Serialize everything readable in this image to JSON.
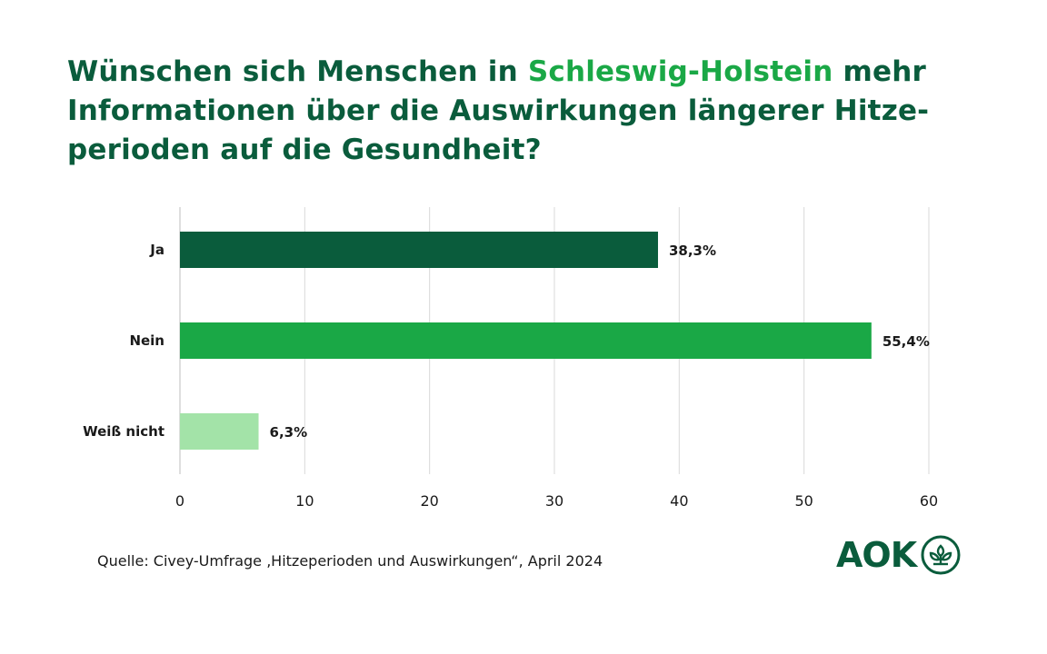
{
  "title": {
    "part1": "Wünschen sich Menschen in ",
    "highlight": "Schleswig-Holstein",
    "part2": " mehr Informationen über die Auswirkungen längerer Hitze-perioden auf die Gesundheit?"
  },
  "colors": {
    "title": "#0a5c3c",
    "highlight": "#1aa846",
    "bar_ja": "#0a5c3c",
    "bar_nein": "#1aa846",
    "bar_weiss_nicht": "#a3e3a8",
    "grid": "#d9d9d9"
  },
  "chart_data": {
    "type": "bar",
    "orientation": "horizontal",
    "categories": [
      "Ja",
      "Nein",
      "Weiß nicht"
    ],
    "values": [
      38.3,
      55.4,
      6.3
    ],
    "value_labels": [
      "38,3%",
      "55,4%",
      "6,3%"
    ],
    "bar_colors": [
      "#0a5c3c",
      "#1aa846",
      "#a3e3a8"
    ],
    "xlim": [
      0,
      60
    ],
    "xticks": [
      0,
      10,
      20,
      30,
      40,
      50,
      60
    ],
    "xtick_labels": [
      "0",
      "10",
      "20",
      "30",
      "40",
      "50",
      "60"
    ],
    "grid": true,
    "title": "Wünschen sich Menschen in Schleswig-Holstein mehr Informationen über die Auswirkungen längerer Hitze-perioden auf die Gesundheit?",
    "xlabel": "",
    "ylabel": ""
  },
  "source": "Quelle: Civey-Umfrage ‚Hitzeperioden und Auswirkungen“, April 2024",
  "logo": {
    "text": "AOK",
    "icon": "aok-tree-icon"
  }
}
